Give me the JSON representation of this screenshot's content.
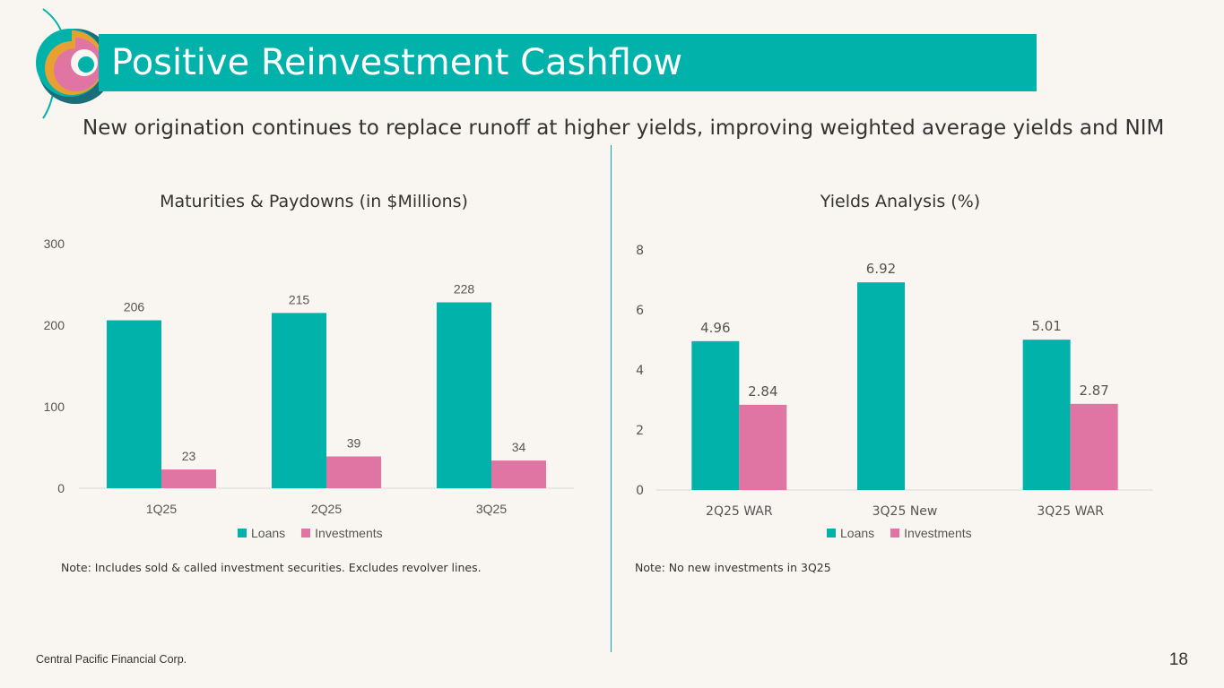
{
  "header": {
    "title": "Positive Reinvestment Cashflow",
    "subtitle": "New origination continues to replace runoff at higher yields, improving weighted average yields and NIM"
  },
  "colors": {
    "accent": "#00b2a9",
    "loans": "#00b2a9",
    "investments": "#e075a3",
    "background": "#f9f5f1"
  },
  "chart_data": [
    {
      "type": "bar",
      "title": "Maturities & Paydowns (in $Millions)",
      "categories": [
        "1Q25",
        "2Q25",
        "3Q25"
      ],
      "series": [
        {
          "name": "Loans",
          "values": [
            206,
            215,
            228
          ],
          "labels": [
            "206",
            "215",
            "228"
          ]
        },
        {
          "name": "Investments",
          "values": [
            23,
            39,
            34
          ],
          "labels": [
            "23",
            "39",
            "34"
          ]
        }
      ],
      "yticks": [
        0,
        100,
        200,
        300
      ],
      "ylim": [
        0,
        300
      ],
      "xlabel": "",
      "ylabel": "",
      "legend": "bottom"
    },
    {
      "type": "bar",
      "title": "Yields Analysis (%)",
      "categories": [
        "2Q25 WAR",
        "3Q25 New",
        "3Q25 WAR"
      ],
      "series": [
        {
          "name": "Loans",
          "values": [
            4.96,
            6.92,
            5.01
          ],
          "labels": [
            "4.96",
            "6.92",
            "5.01"
          ]
        },
        {
          "name": "Investments",
          "values": [
            2.84,
            null,
            2.87
          ],
          "labels": [
            "2.84",
            "",
            "2.87"
          ]
        }
      ],
      "yticks": [
        0,
        2,
        4,
        6,
        8
      ],
      "ylim": [
        0,
        8
      ],
      "xlabel": "",
      "ylabel": "",
      "legend": "bottom"
    }
  ],
  "notes": {
    "left": "Note: Includes sold & called investment securities. Excludes revolver lines.",
    "right": "Note: No new investments in 3Q25"
  },
  "footer": {
    "company": "Central Pacific Financial Corp.",
    "page_number": "18"
  }
}
